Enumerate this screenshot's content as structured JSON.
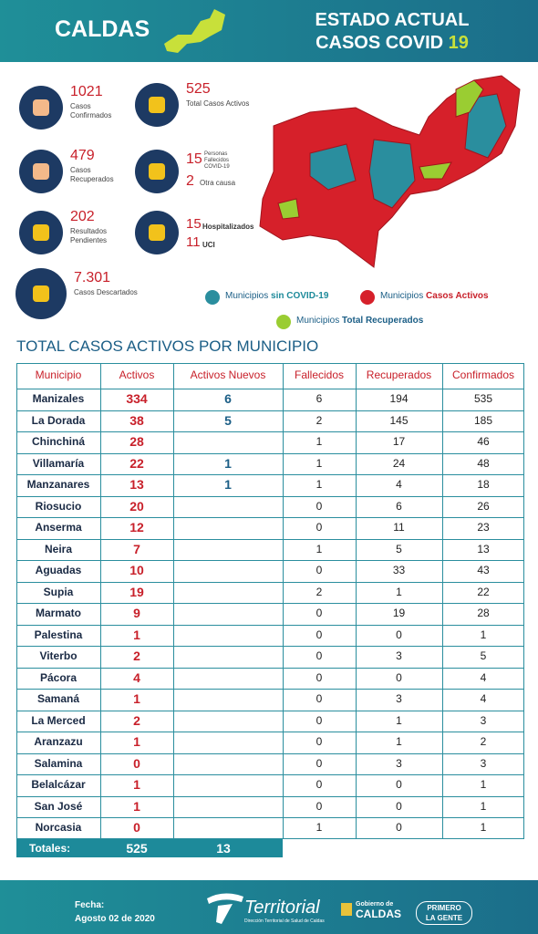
{
  "header": {
    "region": "CALDAS",
    "title_line1": "ESTADO ACTUAL",
    "title_line2": "CASOS COVID",
    "title_number": "19"
  },
  "stats": [
    {
      "value": 1021,
      "label": "Casos Confirmados"
    },
    {
      "value": 525,
      "label": "Total Casos Activos"
    },
    {
      "value": 479,
      "label": "Casos Recuperados"
    },
    {
      "value": 15,
      "label": "Personas Fallecidos COVID-19",
      "second_value": 2,
      "second_label": "Otra causa"
    },
    {
      "value": 202,
      "label": "Resultados Pendientes"
    },
    {
      "value": 15,
      "label": "Hospitalizados",
      "second_value": 11,
      "second_label": "UCI"
    },
    {
      "value": "7.301",
      "label": "Casos Descartados"
    }
  ],
  "legend": [
    {
      "prefix": "Municipios",
      "label": "sin COVID-19"
    },
    {
      "prefix": "Municipios",
      "label": "Casos Activos"
    },
    {
      "prefix": "Municipios",
      "label": "Total Recuperados"
    }
  ],
  "table": {
    "title": "TOTAL CASOS ACTIVOS POR MUNICIPIO",
    "columns": [
      "Municipio",
      "Activos",
      "Activos Nuevos",
      "Fallecidos",
      "Recuperados",
      "Confirmados"
    ],
    "rows": [
      [
        "Manizales",
        334,
        6,
        6,
        194,
        535
      ],
      [
        "La Dorada",
        38,
        5,
        2,
        145,
        185
      ],
      [
        "Chinchiná",
        28,
        null,
        1,
        17,
        46
      ],
      [
        "Villamaría",
        22,
        1,
        1,
        24,
        48
      ],
      [
        "Manzanares",
        13,
        1,
        1,
        4,
        18
      ],
      [
        "Riosucio",
        20,
        null,
        0,
        6,
        26
      ],
      [
        "Anserma",
        12,
        null,
        0,
        11,
        23
      ],
      [
        "Neira",
        7,
        null,
        1,
        5,
        13
      ],
      [
        "Aguadas",
        10,
        null,
        0,
        33,
        43
      ],
      [
        "Supia",
        19,
        null,
        2,
        1,
        22
      ],
      [
        "Marmato",
        9,
        null,
        0,
        19,
        28
      ],
      [
        "Palestina",
        1,
        null,
        0,
        0,
        1
      ],
      [
        "Viterbo",
        2,
        null,
        0,
        3,
        5
      ],
      [
        "Pácora",
        4,
        null,
        0,
        0,
        4
      ],
      [
        "Samaná",
        1,
        null,
        0,
        3,
        4
      ],
      [
        "La Merced",
        2,
        null,
        0,
        1,
        3
      ],
      [
        "Aranzazu",
        1,
        null,
        0,
        1,
        2
      ],
      [
        "Salamina",
        0,
        null,
        0,
        3,
        3
      ],
      [
        "Belalcázar",
        1,
        null,
        0,
        0,
        1
      ],
      [
        "San José",
        1,
        null,
        0,
        0,
        1
      ],
      [
        "Norcasia",
        0,
        null,
        1,
        0,
        1
      ]
    ],
    "totals": {
      "label": "Totales:",
      "activos": 525,
      "nuevos": 13
    }
  },
  "footer": {
    "date_label": "Fecha:",
    "date": "Agosto 02 de 2020",
    "brand": "Territorial",
    "brand_sub": "Dirección Territorial de Salud de Caldas",
    "gov_line1": "Gobierno de",
    "gov_line2": "CALDAS",
    "slogan1": "PRIMERO",
    "slogan2": "LA GENTE"
  }
}
